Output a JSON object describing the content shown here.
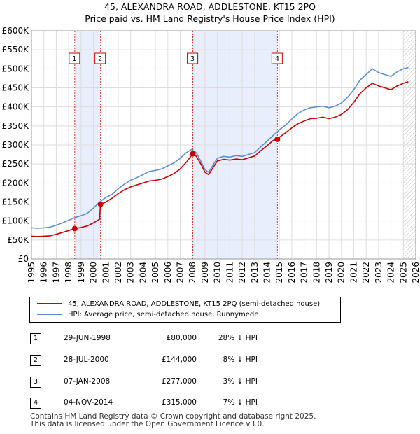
{
  "header": {
    "title": "45, ALEXANDRA ROAD, ADDLESTONE, KT15 2PQ",
    "subtitle": "Price paid vs. HM Land Registry's House Price Index (HPI)"
  },
  "chart_data": {
    "type": "line",
    "x_range": [
      1995,
      2026
    ],
    "ylim": [
      0,
      600000
    ],
    "x_ticks": [
      "1995",
      "1996",
      "1997",
      "1998",
      "1999",
      "2000",
      "2001",
      "2002",
      "2003",
      "2004",
      "2005",
      "2006",
      "2007",
      "2008",
      "2009",
      "2010",
      "2011",
      "2012",
      "2013",
      "2014",
      "2015",
      "2016",
      "2017",
      "2018",
      "2019",
      "2020",
      "2021",
      "2022",
      "2023",
      "2024",
      "2025",
      "2026"
    ],
    "y_ticks": [
      {
        "value": 0,
        "label": "£0"
      },
      {
        "value": 50000,
        "label": "£50K"
      },
      {
        "value": 100000,
        "label": "£100K"
      },
      {
        "value": 150000,
        "label": "£150K"
      },
      {
        "value": 200000,
        "label": "£200K"
      },
      {
        "value": 250000,
        "label": "£250K"
      },
      {
        "value": 300000,
        "label": "£300K"
      },
      {
        "value": 350000,
        "label": "£350K"
      },
      {
        "value": 400000,
        "label": "£400K"
      },
      {
        "value": 450000,
        "label": "£450K"
      },
      {
        "value": 500000,
        "label": "£500K"
      },
      {
        "value": 550000,
        "label": "£550K"
      },
      {
        "value": 600000,
        "label": "£600K"
      }
    ],
    "shaded_periods": [
      [
        1998.49,
        2000.57
      ],
      [
        2008.02,
        2014.84
      ]
    ],
    "hatched_from": 2025.0,
    "series": [
      {
        "name": "HPI: Average price, semi-detached house, Runnymede",
        "color": "#5b8fd0",
        "points": [
          [
            1995.0,
            82000
          ],
          [
            1995.5,
            81000
          ],
          [
            1996.0,
            82000
          ],
          [
            1996.5,
            84000
          ],
          [
            1997.0,
            89000
          ],
          [
            1997.5,
            95000
          ],
          [
            1998.0,
            102000
          ],
          [
            1998.5,
            109000
          ],
          [
            1999.0,
            114000
          ],
          [
            1999.5,
            120000
          ],
          [
            2000.0,
            134000
          ],
          [
            2000.5,
            150000
          ],
          [
            2001.0,
            162000
          ],
          [
            2001.5,
            170000
          ],
          [
            2002.0,
            185000
          ],
          [
            2002.5,
            197000
          ],
          [
            2003.0,
            207000
          ],
          [
            2003.5,
            214000
          ],
          [
            2004.0,
            222000
          ],
          [
            2004.5,
            230000
          ],
          [
            2005.0,
            233000
          ],
          [
            2005.5,
            237000
          ],
          [
            2006.0,
            245000
          ],
          [
            2006.5,
            253000
          ],
          [
            2007.0,
            265000
          ],
          [
            2007.5,
            280000
          ],
          [
            2007.9,
            288000
          ],
          [
            2008.3,
            280000
          ],
          [
            2008.7,
            255000
          ],
          [
            2009.0,
            235000
          ],
          [
            2009.3,
            228000
          ],
          [
            2009.7,
            250000
          ],
          [
            2010.0,
            265000
          ],
          [
            2010.5,
            270000
          ],
          [
            2011.0,
            268000
          ],
          [
            2011.5,
            272000
          ],
          [
            2012.0,
            270000
          ],
          [
            2012.5,
            275000
          ],
          [
            2013.0,
            280000
          ],
          [
            2013.5,
            295000
          ],
          [
            2014.0,
            310000
          ],
          [
            2014.5,
            325000
          ],
          [
            2015.0,
            340000
          ],
          [
            2015.5,
            352000
          ],
          [
            2016.0,
            368000
          ],
          [
            2016.5,
            383000
          ],
          [
            2017.0,
            392000
          ],
          [
            2017.5,
            398000
          ],
          [
            2018.0,
            400000
          ],
          [
            2018.5,
            402000
          ],
          [
            2019.0,
            398000
          ],
          [
            2019.5,
            402000
          ],
          [
            2020.0,
            410000
          ],
          [
            2020.5,
            425000
          ],
          [
            2021.0,
            445000
          ],
          [
            2021.5,
            470000
          ],
          [
            2022.0,
            485000
          ],
          [
            2022.5,
            500000
          ],
          [
            2023.0,
            490000
          ],
          [
            2023.5,
            485000
          ],
          [
            2024.0,
            480000
          ],
          [
            2024.5,
            492000
          ],
          [
            2025.0,
            500000
          ],
          [
            2025.4,
            503000
          ]
        ]
      },
      {
        "name": "45, ALEXANDRA ROAD, ADDLESTONE, KT15 2PQ (semi-detached house)",
        "color": "#cc0000",
        "points": [
          [
            1995.0,
            60000
          ],
          [
            1995.5,
            59000
          ],
          [
            1996.0,
            60000
          ],
          [
            1996.5,
            61000
          ],
          [
            1997.0,
            65000
          ],
          [
            1997.5,
            70000
          ],
          [
            1998.0,
            75000
          ],
          [
            1998.49,
            80000
          ],
          [
            1999.0,
            83000
          ],
          [
            1999.5,
            87000
          ],
          [
            2000.0,
            95000
          ],
          [
            2000.5,
            105000
          ],
          [
            2000.57,
            144000
          ],
          [
            2001.0,
            150000
          ],
          [
            2001.5,
            160000
          ],
          [
            2002.0,
            172000
          ],
          [
            2002.5,
            182000
          ],
          [
            2003.0,
            190000
          ],
          [
            2003.5,
            195000
          ],
          [
            2004.0,
            200000
          ],
          [
            2004.5,
            205000
          ],
          [
            2005.0,
            207000
          ],
          [
            2005.5,
            210000
          ],
          [
            2006.0,
            217000
          ],
          [
            2006.5,
            225000
          ],
          [
            2007.0,
            237000
          ],
          [
            2007.5,
            255000
          ],
          [
            2008.02,
            277000
          ],
          [
            2008.3,
            270000
          ],
          [
            2008.7,
            248000
          ],
          [
            2009.0,
            228000
          ],
          [
            2009.3,
            222000
          ],
          [
            2009.7,
            243000
          ],
          [
            2010.0,
            258000
          ],
          [
            2010.5,
            262000
          ],
          [
            2011.0,
            260000
          ],
          [
            2011.5,
            263000
          ],
          [
            2012.0,
            261000
          ],
          [
            2012.5,
            266000
          ],
          [
            2013.0,
            271000
          ],
          [
            2013.5,
            285000
          ],
          [
            2014.0,
            298000
          ],
          [
            2014.5,
            312000
          ],
          [
            2014.84,
            315000
          ],
          [
            2015.0,
            320000
          ],
          [
            2015.5,
            332000
          ],
          [
            2016.0,
            345000
          ],
          [
            2016.5,
            356000
          ],
          [
            2017.0,
            363000
          ],
          [
            2017.5,
            369000
          ],
          [
            2018.0,
            370000
          ],
          [
            2018.5,
            373000
          ],
          [
            2019.0,
            369000
          ],
          [
            2019.5,
            373000
          ],
          [
            2020.0,
            380000
          ],
          [
            2020.5,
            393000
          ],
          [
            2021.0,
            412000
          ],
          [
            2021.5,
            435000
          ],
          [
            2022.0,
            450000
          ],
          [
            2022.5,
            462000
          ],
          [
            2023.0,
            455000
          ],
          [
            2023.5,
            450000
          ],
          [
            2024.0,
            445000
          ],
          [
            2024.5,
            455000
          ],
          [
            2025.0,
            462000
          ],
          [
            2025.4,
            466000
          ]
        ]
      }
    ],
    "sales": [
      {
        "num": "1",
        "x": 1998.49,
        "y": 80000
      },
      {
        "num": "2",
        "x": 2000.57,
        "y": 144000
      },
      {
        "num": "3",
        "x": 2008.02,
        "y": 277000
      },
      {
        "num": "4",
        "x": 2014.84,
        "y": 315000
      }
    ]
  },
  "legend": {
    "property_label": "45, ALEXANDRA ROAD, ADDLESTONE, KT15 2PQ (semi-detached house)",
    "hpi_label": "HPI: Average price, semi-detached house, Runnymede"
  },
  "sales_table": [
    {
      "num": "1",
      "date": "29-JUN-1998",
      "price": "£80,000",
      "hpi": "28% ↓ HPI"
    },
    {
      "num": "2",
      "date": "28-JUL-2000",
      "price": "£144,000",
      "hpi": "8% ↓ HPI"
    },
    {
      "num": "3",
      "date": "07-JAN-2008",
      "price": "£277,000",
      "hpi": "3% ↓ HPI"
    },
    {
      "num": "4",
      "date": "04-NOV-2014",
      "price": "£315,000",
      "hpi": "7% ↓ HPI"
    }
  ],
  "footer": {
    "line1": "Contains HM Land Registry data © Crown copyright and database right 2025.",
    "line2": "This data is licensed under the Open Government Licence v3.0."
  },
  "colors": {
    "property_line": "#cc0000",
    "hpi_line": "#5b8fd0",
    "shade": "#e8eefb",
    "grid": "#dddddd"
  }
}
